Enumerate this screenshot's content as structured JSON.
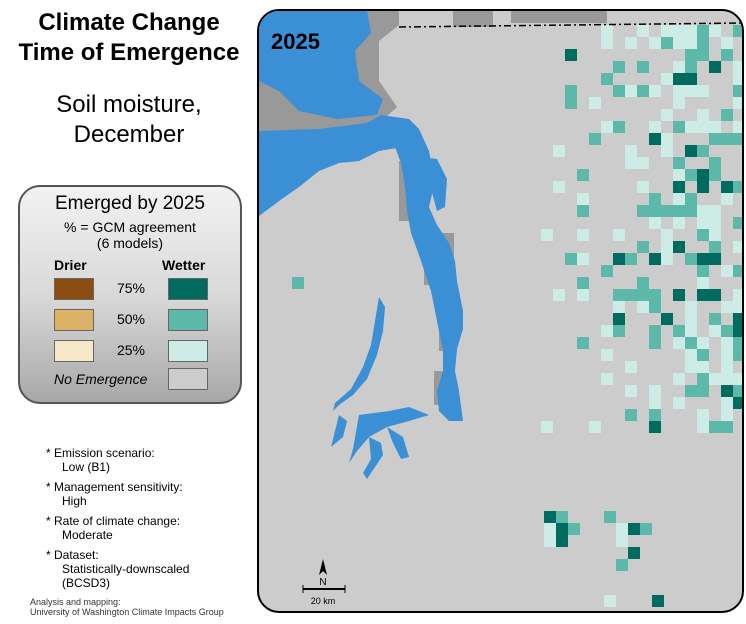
{
  "title": {
    "line1": "Climate Change",
    "line2": "Time of Emergence"
  },
  "subtitle": {
    "line1": "Soil moisture,",
    "line2": "December"
  },
  "legend": {
    "title": "Emerged by 2025",
    "sub1": "% = GCM agreement",
    "sub2": "(6 models)",
    "drier_label": "Drier",
    "wetter_label": "Wetter",
    "rows": [
      {
        "pct": "75%",
        "drier_color": "#8b4d12",
        "wetter_color": "#006b5f"
      },
      {
        "pct": "50%",
        "drier_color": "#dbb266",
        "wetter_color": "#5cb8a8"
      },
      {
        "pct": "25%",
        "drier_color": "#f6e8c8",
        "wetter_color": "#cdece6"
      }
    ],
    "no_emergence_label": "No Emergence",
    "no_emergence_color": "#cccccc"
  },
  "notes": [
    {
      "label": "* Emission scenario:",
      "value": "Low (B1)"
    },
    {
      "label": "* Management sensitivity:",
      "value": "High"
    },
    {
      "label": "* Rate of climate change:",
      "value": "Moderate"
    },
    {
      "label": "* Dataset:",
      "value1": "Statistically-downscaled",
      "value2": "(BCSD3)"
    }
  ],
  "credit": {
    "line1": "Analysis and mapping:",
    "line2": "University of Washington Climate Impacts Group"
  },
  "map": {
    "year": "2025",
    "water_color": "#3b8fd4",
    "land_color": "#cccccc",
    "outside_color": "#999999",
    "north_label": "N",
    "scale_label": "20 km"
  }
}
